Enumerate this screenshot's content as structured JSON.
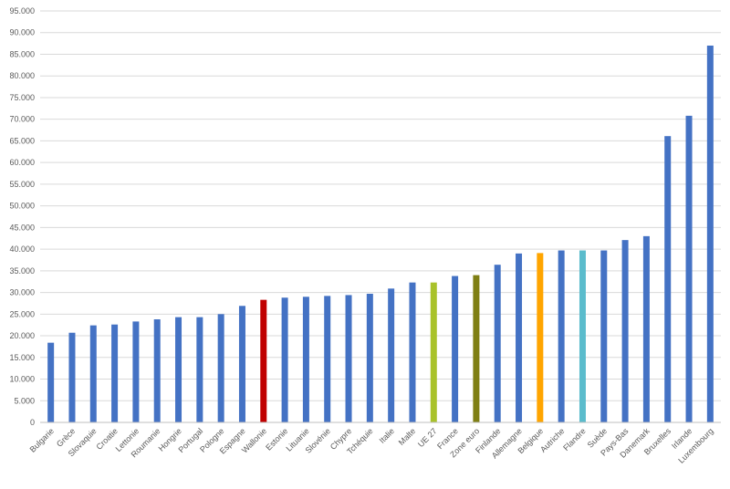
{
  "chart_data": {
    "type": "bar",
    "title": "",
    "xlabel": "",
    "ylabel": "",
    "ylim": [
      0,
      95000
    ],
    "ytick_step": 5000,
    "grid": true,
    "legend": "none",
    "default_color": "#4472c4",
    "categories": [
      "Bulgarie",
      "Grèce",
      "Slovaquie",
      "Croatie",
      "Lettonie",
      "Roumanie",
      "Hongrie",
      "Portugal",
      "Pologne",
      "Espagne",
      "Wallonie",
      "Estonie",
      "Lituanie",
      "Slovénie",
      "Chypre",
      "Tchéquie",
      "Italie",
      "Malte",
      "UE 27",
      "France",
      "Zone euro",
      "Finlande",
      "Allemagne",
      "Belgique",
      "Autriche",
      "Flandre",
      "Suède",
      "Pays-Bas",
      "Danemark",
      "Bruxelles",
      "Irlande",
      "Luxembourg"
    ],
    "values": [
      18400,
      20700,
      22400,
      22600,
      23300,
      23800,
      24300,
      24300,
      25000,
      26900,
      28300,
      28800,
      29000,
      29200,
      29400,
      29700,
      30900,
      32300,
      32300,
      33800,
      34000,
      36400,
      39000,
      39100,
      39700,
      39700,
      39700,
      42100,
      43000,
      66100,
      70800,
      87000
    ],
    "colors": [
      "#4472c4",
      "#4472c4",
      "#4472c4",
      "#4472c4",
      "#4472c4",
      "#4472c4",
      "#4472c4",
      "#4472c4",
      "#4472c4",
      "#4472c4",
      "#c00000",
      "#4472c4",
      "#4472c4",
      "#4472c4",
      "#4472c4",
      "#4472c4",
      "#4472c4",
      "#4472c4",
      "#a9c22b",
      "#4472c4",
      "#7f7f14",
      "#4472c4",
      "#4472c4",
      "#ffa500",
      "#4472c4",
      "#5bbccc",
      "#4472c4",
      "#4472c4",
      "#4472c4",
      "#4472c4",
      "#4472c4",
      "#4472c4"
    ],
    "ytick_labels": [
      "0",
      "5.000",
      "10.000",
      "15.000",
      "20.000",
      "25.000",
      "30.000",
      "35.000",
      "40.000",
      "45.000",
      "50.000",
      "55.000",
      "60.000",
      "65.000",
      "70.000",
      "75.000",
      "80.000",
      "85.000",
      "90.000",
      "95.000"
    ]
  }
}
